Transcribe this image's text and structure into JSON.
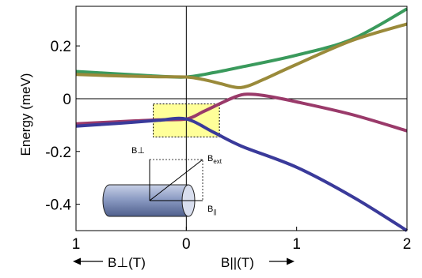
{
  "chart_data": {
    "type": "line",
    "ylabel": "Energy (meV)",
    "xlabel_left": "B⊥(T)",
    "xlabel_right": "B||(T)",
    "x_ticks": [
      {
        "x": -1,
        "label": "1"
      },
      {
        "x": 0,
        "label": "0"
      },
      {
        "x": 1,
        "label": "1"
      },
      {
        "x": 2,
        "label": "2"
      }
    ],
    "y_ticks": [
      {
        "y": 0.2,
        "label": "0.2"
      },
      {
        "y": 0,
        "label": "0"
      },
      {
        "y": -0.2,
        "label": "-0.2"
      },
      {
        "y": -0.4,
        "label": "-0.4"
      }
    ],
    "xlim": [
      -1,
      2
    ],
    "ylim": [
      -0.5,
      0.35
    ],
    "highlight_box": {
      "x": [
        -0.3,
        0.3
      ],
      "y": [
        -0.145,
        -0.02
      ],
      "color": "#ffff99"
    },
    "series": [
      {
        "color": "#3a9a5c",
        "points": [
          [
            -1,
            0.103
          ],
          [
            -0.75,
            0.097
          ],
          [
            -0.5,
            0.091
          ],
          [
            -0.25,
            0.085
          ],
          [
            0,
            0.082
          ],
          [
            0.25,
            0.099
          ],
          [
            0.5,
            0.12
          ],
          [
            1,
            0.165
          ],
          [
            1.5,
            0.225
          ],
          [
            2,
            0.34
          ]
        ]
      },
      {
        "color": "#9a8a3a",
        "points": [
          [
            -1,
            0.092
          ],
          [
            -0.75,
            0.088
          ],
          [
            -0.5,
            0.085
          ],
          [
            -0.25,
            0.083
          ],
          [
            0,
            0.082
          ],
          [
            0.15,
            0.073
          ],
          [
            0.3,
            0.058
          ],
          [
            0.45,
            0.043
          ],
          [
            0.55,
            0.047
          ],
          [
            0.7,
            0.073
          ],
          [
            1,
            0.13
          ],
          [
            1.5,
            0.22
          ],
          [
            2,
            0.283
          ]
        ]
      },
      {
        "color": "#9a3a6a",
        "points": [
          [
            -1,
            -0.095
          ],
          [
            -0.75,
            -0.09
          ],
          [
            -0.5,
            -0.085
          ],
          [
            -0.25,
            -0.08
          ],
          [
            0,
            -0.077
          ],
          [
            0.15,
            -0.05
          ],
          [
            0.3,
            -0.02
          ],
          [
            0.45,
            0.008
          ],
          [
            0.55,
            0.017
          ],
          [
            0.7,
            0.012
          ],
          [
            1,
            -0.012
          ],
          [
            1.5,
            -0.06
          ],
          [
            2,
            -0.122
          ]
        ]
      },
      {
        "color": "#3a3a9a",
        "points": [
          [
            -1,
            -0.104
          ],
          [
            -0.75,
            -0.097
          ],
          [
            -0.5,
            -0.09
          ],
          [
            -0.25,
            -0.082
          ],
          [
            0,
            -0.077
          ],
          [
            0.25,
            -0.128
          ],
          [
            0.5,
            -0.18
          ],
          [
            1,
            -0.26
          ],
          [
            1.5,
            -0.37
          ],
          [
            2,
            -0.5
          ]
        ]
      }
    ],
    "inset": {
      "label_bperp": "B⊥",
      "label_bext_main": "B",
      "label_bext_sub": "ext",
      "label_bpar_main": "B",
      "label_bpar_sub": "||"
    }
  }
}
